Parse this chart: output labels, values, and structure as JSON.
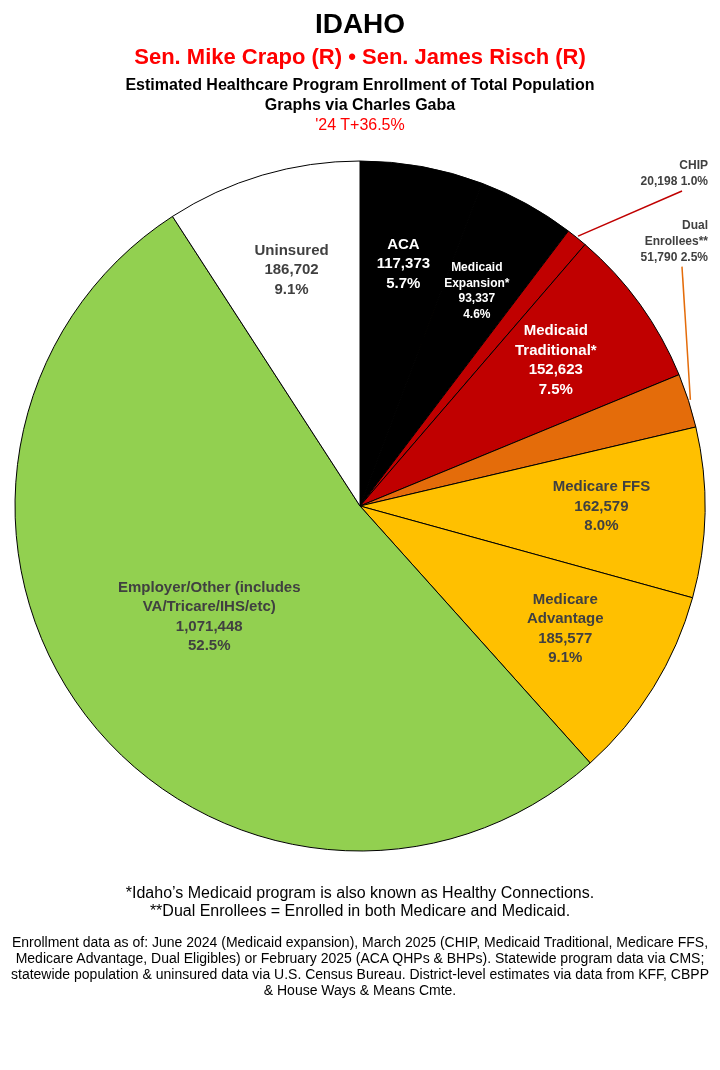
{
  "chart_data": {
    "type": "pie",
    "title": "IDAHO",
    "subtitle": "Sen. Mike Crapo (R) • Sen. James Risch (R)",
    "annotations": [
      "Estimated Healthcare Program Enrollment of Total Population",
      "Graphs via Charles Gaba",
      "'24 T+36.5%",
      "*Idaho’s Medicaid program is also known as Healthy Connections.",
      "**Dual Enrollees = Enrolled in both Medicare and Medicaid.",
      "Enrollment data as of: June 2024 (Medicaid expansion), March 2025 (CHIP, Medicaid Traditional, Medicare FFS, Medicare Advantage, Dual Eligibles) or February 2025 (ACA QHPs & BHPs). Statewide program data via CMS; statewide population & uninsured data via U.S. Census Bureau. District-level estimates via data from KFF, CBPP & House Ways & Means Cmte."
    ],
    "categories": [
      "ACA",
      "Medicaid Expansion*",
      "CHIP",
      "Medicaid Traditional*",
      "Dual Enrollees**",
      "Medicare FFS",
      "Medicare Advantage",
      "Employer/Other (includes VA/Tricare/IHS/etc)",
      "Uninsured"
    ],
    "values": [
      117373,
      93337,
      20198,
      152623,
      51790,
      162579,
      185577,
      1071448,
      186702
    ],
    "colors": [
      "#000000",
      "#000000",
      "#c00000",
      "#c00000",
      "#e46c0a",
      "#ffc000",
      "#ffc000",
      "#92d050",
      "#ffffff"
    ],
    "value_labels": [
      "117,373 5.7%",
      "93,337 4.6%",
      "20,198 1.0%",
      "152,623 7.5%",
      "51,790 2.5%",
      "162,579 8.0%",
      "185,577 9.1%",
      "1,071,448 52.5%",
      "186,702 9.1%"
    ]
  }
}
